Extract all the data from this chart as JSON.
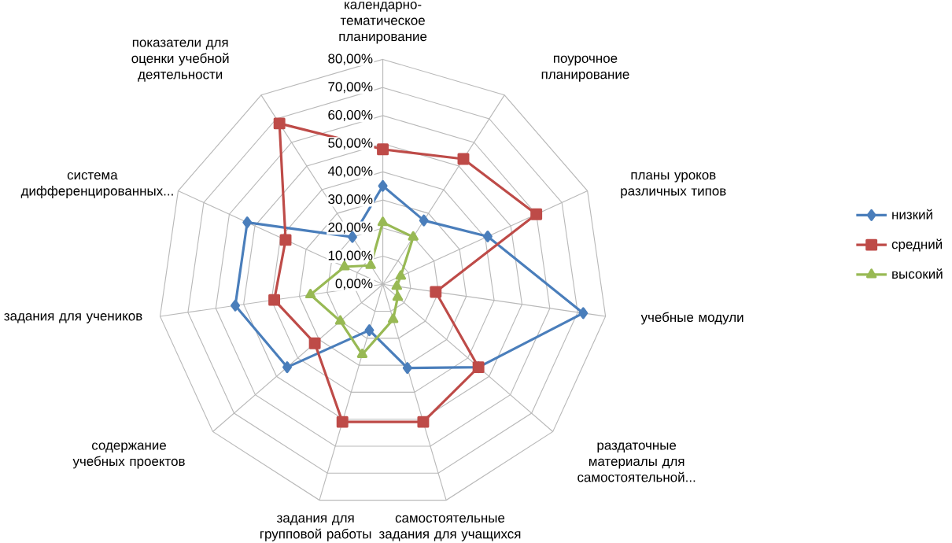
{
  "chart_data": {
    "type": "radar",
    "categories": [
      "календарно-тематическое планирование",
      "поурочное планирование",
      "планы уроков различных типов",
      "учебные модули",
      "раздаточные материалы для самостоятельной...",
      "самостоятельные задания для учащихся",
      "задания для групповой работы",
      "содержание учебных проектов",
      "задания для учеников",
      "система дифференцированных...",
      "показатели для оценки учебной деятельности"
    ],
    "series": [
      {
        "name": "низкий",
        "color": "#4a7ebb",
        "marker": "diamond",
        "values": [
          35,
          27,
          41,
          72,
          45,
          31,
          17,
          45,
          53,
          53,
          20
        ]
      },
      {
        "name": "средний",
        "color": "#be4b48",
        "marker": "square",
        "values": [
          48,
          53,
          60,
          19,
          45,
          51,
          51,
          32,
          39,
          38,
          68
        ]
      },
      {
        "name": "высокий",
        "color": "#98b954",
        "marker": "triangle",
        "values": [
          22,
          20,
          7,
          5,
          7,
          13,
          26,
          20,
          26,
          15,
          8
        ]
      }
    ],
    "ylim": [
      0,
      80
    ],
    "yticks": [
      {
        "value": 0,
        "label": "0,00%"
      },
      {
        "value": 10,
        "label": "10,00%"
      },
      {
        "value": 20,
        "label": "20,00%"
      },
      {
        "value": 30,
        "label": "30,00%"
      },
      {
        "value": 40,
        "label": "40,00%"
      },
      {
        "value": 50,
        "label": "50,00%"
      },
      {
        "value": 60,
        "label": "60,00%"
      },
      {
        "value": 70,
        "label": "70,00%"
      },
      {
        "value": 80,
        "label": "80,00%"
      }
    ],
    "grid": true,
    "legend": "right"
  }
}
